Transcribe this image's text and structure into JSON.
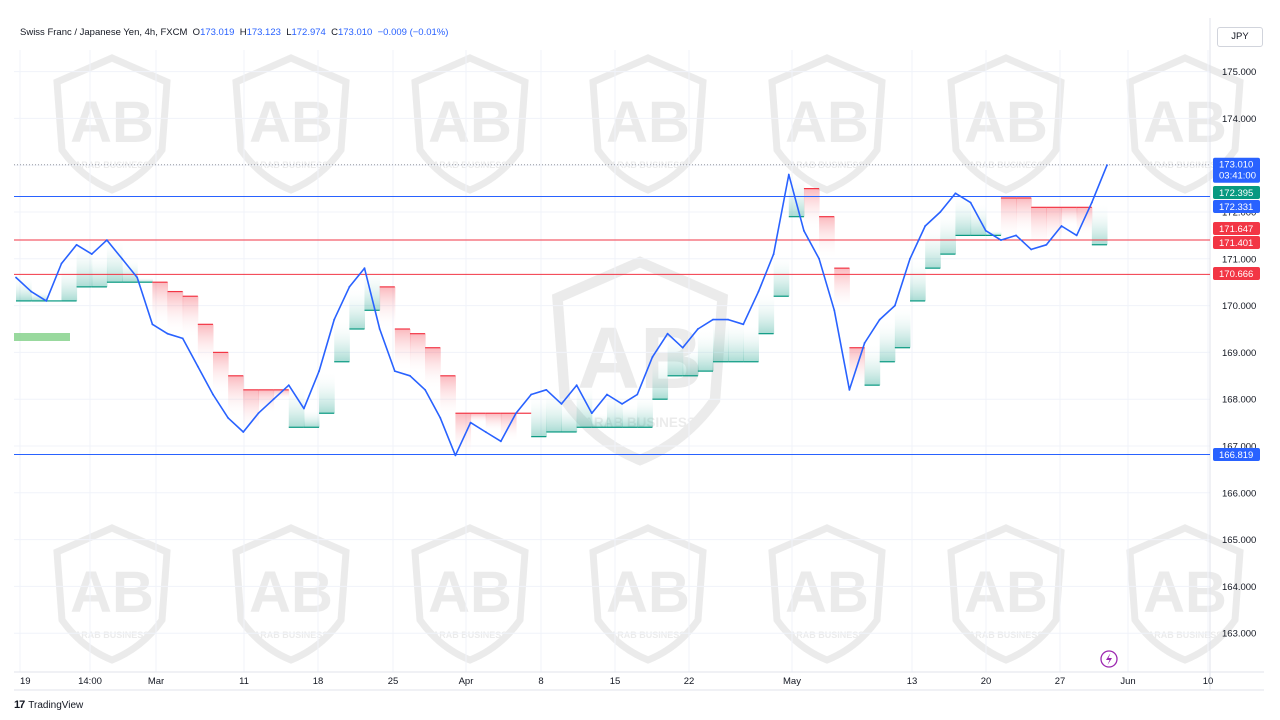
{
  "header": {
    "symbol": "Swiss Franc / Japanese Yen, 4h, FXCM",
    "o_label": "O",
    "o": "173.019",
    "h_label": "H",
    "h": "173.123",
    "l_label": "L",
    "l": "172.974",
    "c_label": "C",
    "c": "173.010",
    "change": "−0.009 (−0.01%)"
  },
  "currency_button": "JPY",
  "footer": {
    "brand": "TradingView"
  },
  "watermark_text": "ARAB BUSINESS",
  "colors": {
    "price_line": "#2962ff",
    "bull": "#089981",
    "bear": "#f23645",
    "grid": "#f0f3fa",
    "axis_text": "#131722"
  },
  "chart_data": {
    "type": "line",
    "y_axis_ticks": [
      "175.000",
      "174.000",
      "173.000",
      "172.000",
      "171.000",
      "170.000",
      "169.000",
      "168.000",
      "167.000",
      "166.000",
      "165.000",
      "164.000",
      "163.000"
    ],
    "ylim": [
      162.5,
      176.0
    ],
    "x_axis_ticks": [
      "19",
      "14:00",
      "Mar",
      "11",
      "18",
      "25",
      "Apr",
      "8",
      "15",
      "22",
      "May",
      "13",
      "20",
      "27",
      "Jun",
      "10"
    ],
    "last_price": {
      "value": "173.010",
      "countdown": "03:41:00"
    },
    "price_labels": [
      {
        "value": "172.395",
        "color": "#089981"
      },
      {
        "value": "172.331",
        "color": "#2962ff"
      },
      {
        "value": "171.647",
        "color": "#f23645"
      },
      {
        "value": "171.401",
        "color": "#f23645"
      },
      {
        "value": "170.666",
        "color": "#f23645"
      },
      {
        "value": "166.819",
        "color": "#2962ff"
      }
    ],
    "horizontal_lines": [
      {
        "value": 172.331,
        "color": "#2962ff"
      },
      {
        "value": 171.401,
        "color": "#f23645"
      },
      {
        "value": 170.666,
        "color": "#f23645"
      },
      {
        "value": 166.819,
        "color": "#2962ff"
      }
    ],
    "series": [
      {
        "x": [
          "Feb 19",
          "Feb 20",
          "Feb 21",
          "Feb 22",
          "Feb 23",
          "Feb 26",
          "Feb 27",
          "Feb 28",
          "Feb 29",
          "Mar 1",
          "Mar 4",
          "Mar 5",
          "Mar 6",
          "Mar 7",
          "Mar 8",
          "Mar 11",
          "Mar 12",
          "Mar 13",
          "Mar 14",
          "Mar 15",
          "Mar 18",
          "Mar 19",
          "Mar 20",
          "Mar 21",
          "Mar 22",
          "Mar 25",
          "Mar 26",
          "Mar 27",
          "Mar 28",
          "Mar 29",
          "Apr 1",
          "Apr 2",
          "Apr 3",
          "Apr 4",
          "Apr 5",
          "Apr 8",
          "Apr 9",
          "Apr 10",
          "Apr 11",
          "Apr 12",
          "Apr 15",
          "Apr 16",
          "Apr 17",
          "Apr 18",
          "Apr 19",
          "Apr 22",
          "Apr 23",
          "Apr 24",
          "Apr 25",
          "Apr 26",
          "Apr 29",
          "Apr 30",
          "May 1",
          "May 2",
          "May 3",
          "May 6",
          "May 7",
          "May 8",
          "May 9",
          "May 10",
          "May 13",
          "May 14",
          "May 15",
          "May 16",
          "May 17",
          "May 20",
          "May 21",
          "May 22",
          "May 23",
          "May 24",
          "May 27",
          "May 28",
          "May 29"
        ],
        "values": [
          170.6,
          170.3,
          170.1,
          170.9,
          171.3,
          171.1,
          171.4,
          171.0,
          170.6,
          169.6,
          169.4,
          169.3,
          168.7,
          168.1,
          167.6,
          167.3,
          167.7,
          168.0,
          168.3,
          167.8,
          168.6,
          169.7,
          170.4,
          170.8,
          169.5,
          168.6,
          168.5,
          168.2,
          167.6,
          166.8,
          167.5,
          167.3,
          167.1,
          167.7,
          168.1,
          168.2,
          167.9,
          168.3,
          167.7,
          168.1,
          167.9,
          168.1,
          168.9,
          169.4,
          169.1,
          169.5,
          169.7,
          169.7,
          169.6,
          170.3,
          171.1,
          172.8,
          171.6,
          171.0,
          169.9,
          168.2,
          169.2,
          169.7,
          170.0,
          171.0,
          171.7,
          172.0,
          172.4,
          172.2,
          171.6,
          171.4,
          171.5,
          171.2,
          171.3,
          171.7,
          171.5,
          172.2,
          173.0
        ]
      }
    ]
  }
}
